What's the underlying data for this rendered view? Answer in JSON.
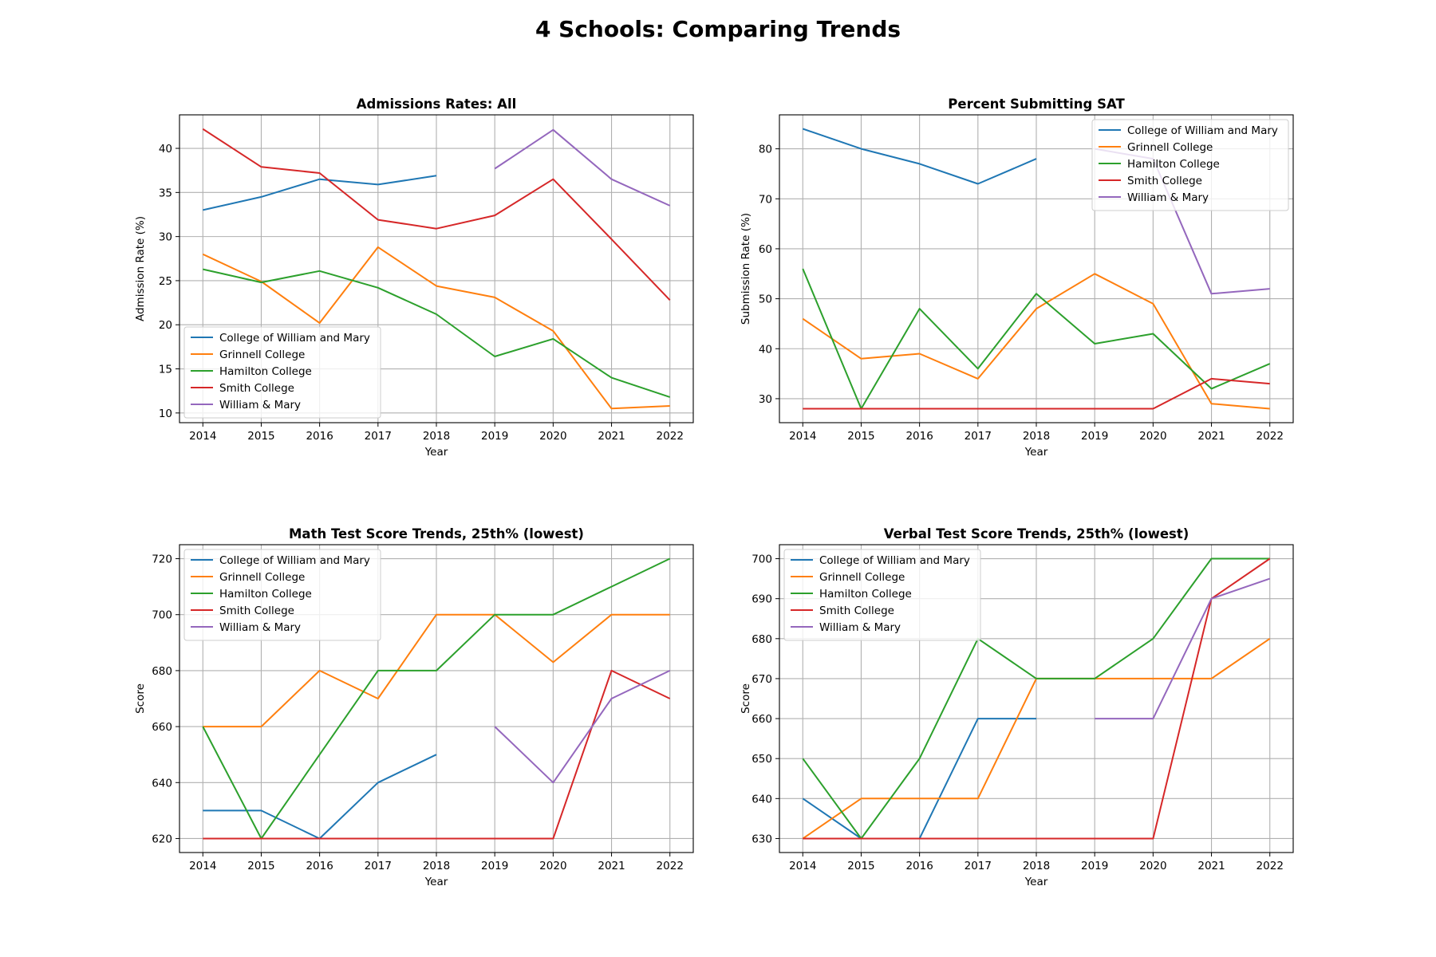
{
  "figure": {
    "title": "4 Schools: Comparing Trends"
  },
  "chart_data": [
    {
      "type": "line",
      "title": "Admissions Rates: All",
      "xlabel": "Year",
      "ylabel": "Admission Rate (%)",
      "x": [
        2014,
        2015,
        2016,
        2017,
        2018,
        2019,
        2020,
        2021,
        2022
      ],
      "xticks": [
        2014,
        2015,
        2016,
        2017,
        2018,
        2019,
        2020,
        2021,
        2022
      ],
      "xlim": [
        2013.6,
        2022.4
      ],
      "yticks": [
        10,
        15,
        20,
        25,
        30,
        35,
        40
      ],
      "ylim": [
        8.9,
        43.8
      ],
      "grid": true,
      "legend_loc": "lower-left",
      "series": [
        {
          "name": "College of William and Mary",
          "color": "#1f77b4",
          "values": [
            33.0,
            34.5,
            36.5,
            35.9,
            36.9,
            null,
            null,
            null,
            null
          ]
        },
        {
          "name": "Grinnell College",
          "color": "#ff7f0e",
          "values": [
            28.0,
            24.9,
            20.2,
            28.8,
            24.4,
            23.1,
            19.3,
            10.5,
            10.8
          ]
        },
        {
          "name": "Hamilton College",
          "color": "#2ca02c",
          "values": [
            26.3,
            24.8,
            26.1,
            24.2,
            21.2,
            16.4,
            18.4,
            14.0,
            11.8
          ]
        },
        {
          "name": "Smith College",
          "color": "#d62728",
          "values": [
            42.2,
            37.9,
            37.2,
            31.9,
            30.9,
            32.4,
            36.5,
            29.7,
            22.8
          ]
        },
        {
          "name": "William & Mary",
          "color": "#9467bd",
          "values": [
            null,
            null,
            null,
            null,
            null,
            37.7,
            42.1,
            36.5,
            33.5
          ]
        }
      ]
    },
    {
      "type": "line",
      "title": "Percent Submitting SAT",
      "xlabel": "Year",
      "ylabel": "Submission Rate (%)",
      "x": [
        2014,
        2015,
        2016,
        2017,
        2018,
        2019,
        2020,
        2021,
        2022
      ],
      "xticks": [
        2014,
        2015,
        2016,
        2017,
        2018,
        2019,
        2020,
        2021,
        2022
      ],
      "xlim": [
        2013.6,
        2022.4
      ],
      "yticks": [
        30,
        40,
        50,
        60,
        70,
        80
      ],
      "ylim": [
        25.2,
        86.8
      ],
      "grid": true,
      "legend_loc": "upper-right",
      "series": [
        {
          "name": "College of William and Mary",
          "color": "#1f77b4",
          "values": [
            84,
            80,
            77,
            73,
            78,
            null,
            null,
            null,
            null
          ]
        },
        {
          "name": "Grinnell College",
          "color": "#ff7f0e",
          "values": [
            46,
            38,
            39,
            34,
            48,
            55,
            49,
            29,
            28
          ]
        },
        {
          "name": "Hamilton College",
          "color": "#2ca02c",
          "values": [
            56,
            28,
            48,
            36,
            51,
            41,
            43,
            32,
            37
          ]
        },
        {
          "name": "Smith College",
          "color": "#d62728",
          "values": [
            28,
            28,
            28,
            28,
            28,
            28,
            28,
            34,
            33
          ]
        },
        {
          "name": "William & Mary",
          "color": "#9467bd",
          "values": [
            null,
            null,
            null,
            null,
            null,
            80,
            78,
            51,
            52
          ]
        }
      ]
    },
    {
      "type": "line",
      "title": "Math Test Score Trends, 25th% (lowest)",
      "xlabel": "Year",
      "ylabel": "Score",
      "x": [
        2014,
        2015,
        2016,
        2017,
        2018,
        2019,
        2020,
        2021,
        2022
      ],
      "xticks": [
        2014,
        2015,
        2016,
        2017,
        2018,
        2019,
        2020,
        2021,
        2022
      ],
      "xlim": [
        2013.6,
        2022.4
      ],
      "yticks": [
        620,
        640,
        660,
        680,
        700,
        720
      ],
      "ylim": [
        615,
        725
      ],
      "grid": true,
      "legend_loc": "upper-left",
      "series": [
        {
          "name": "College of William and Mary",
          "color": "#1f77b4",
          "values": [
            630,
            630,
            620,
            640,
            650,
            null,
            null,
            null,
            null
          ]
        },
        {
          "name": "Grinnell College",
          "color": "#ff7f0e",
          "values": [
            660,
            660,
            680,
            670,
            700,
            700,
            683,
            700,
            700
          ]
        },
        {
          "name": "Hamilton College",
          "color": "#2ca02c",
          "values": [
            660,
            620,
            650,
            680,
            680,
            700,
            700,
            710,
            720
          ]
        },
        {
          "name": "Smith College",
          "color": "#d62728",
          "values": [
            620,
            620,
            620,
            620,
            620,
            620,
            620,
            680,
            670
          ]
        },
        {
          "name": "William & Mary",
          "color": "#9467bd",
          "values": [
            null,
            null,
            null,
            null,
            null,
            660,
            640,
            670,
            680
          ]
        }
      ]
    },
    {
      "type": "line",
      "title": "Verbal  Test Score Trends, 25th% (lowest)",
      "xlabel": "Year",
      "ylabel": "Score",
      "x": [
        2014,
        2015,
        2016,
        2017,
        2018,
        2019,
        2020,
        2021,
        2022
      ],
      "xticks": [
        2014,
        2015,
        2016,
        2017,
        2018,
        2019,
        2020,
        2021,
        2022
      ],
      "xlim": [
        2013.6,
        2022.4
      ],
      "yticks": [
        630,
        640,
        650,
        660,
        670,
        680,
        690,
        700
      ],
      "ylim": [
        626.5,
        703.5
      ],
      "grid": true,
      "legend_loc": "upper-left",
      "series": [
        {
          "name": "College of William and Mary",
          "color": "#1f77b4",
          "values": [
            640,
            630,
            630,
            660,
            660,
            null,
            null,
            null,
            null
          ]
        },
        {
          "name": "Grinnell College",
          "color": "#ff7f0e",
          "values": [
            630,
            640,
            640,
            640,
            670,
            670,
            670,
            670,
            680
          ]
        },
        {
          "name": "Hamilton College",
          "color": "#2ca02c",
          "values": [
            650,
            630,
            650,
            680,
            670,
            670,
            680,
            700,
            700
          ]
        },
        {
          "name": "Smith College",
          "color": "#d62728",
          "values": [
            630,
            630,
            630,
            630,
            630,
            630,
            630,
            690,
            700
          ]
        },
        {
          "name": "William & Mary",
          "color": "#9467bd",
          "values": [
            null,
            null,
            null,
            null,
            null,
            660,
            660,
            690,
            695
          ]
        }
      ]
    }
  ]
}
